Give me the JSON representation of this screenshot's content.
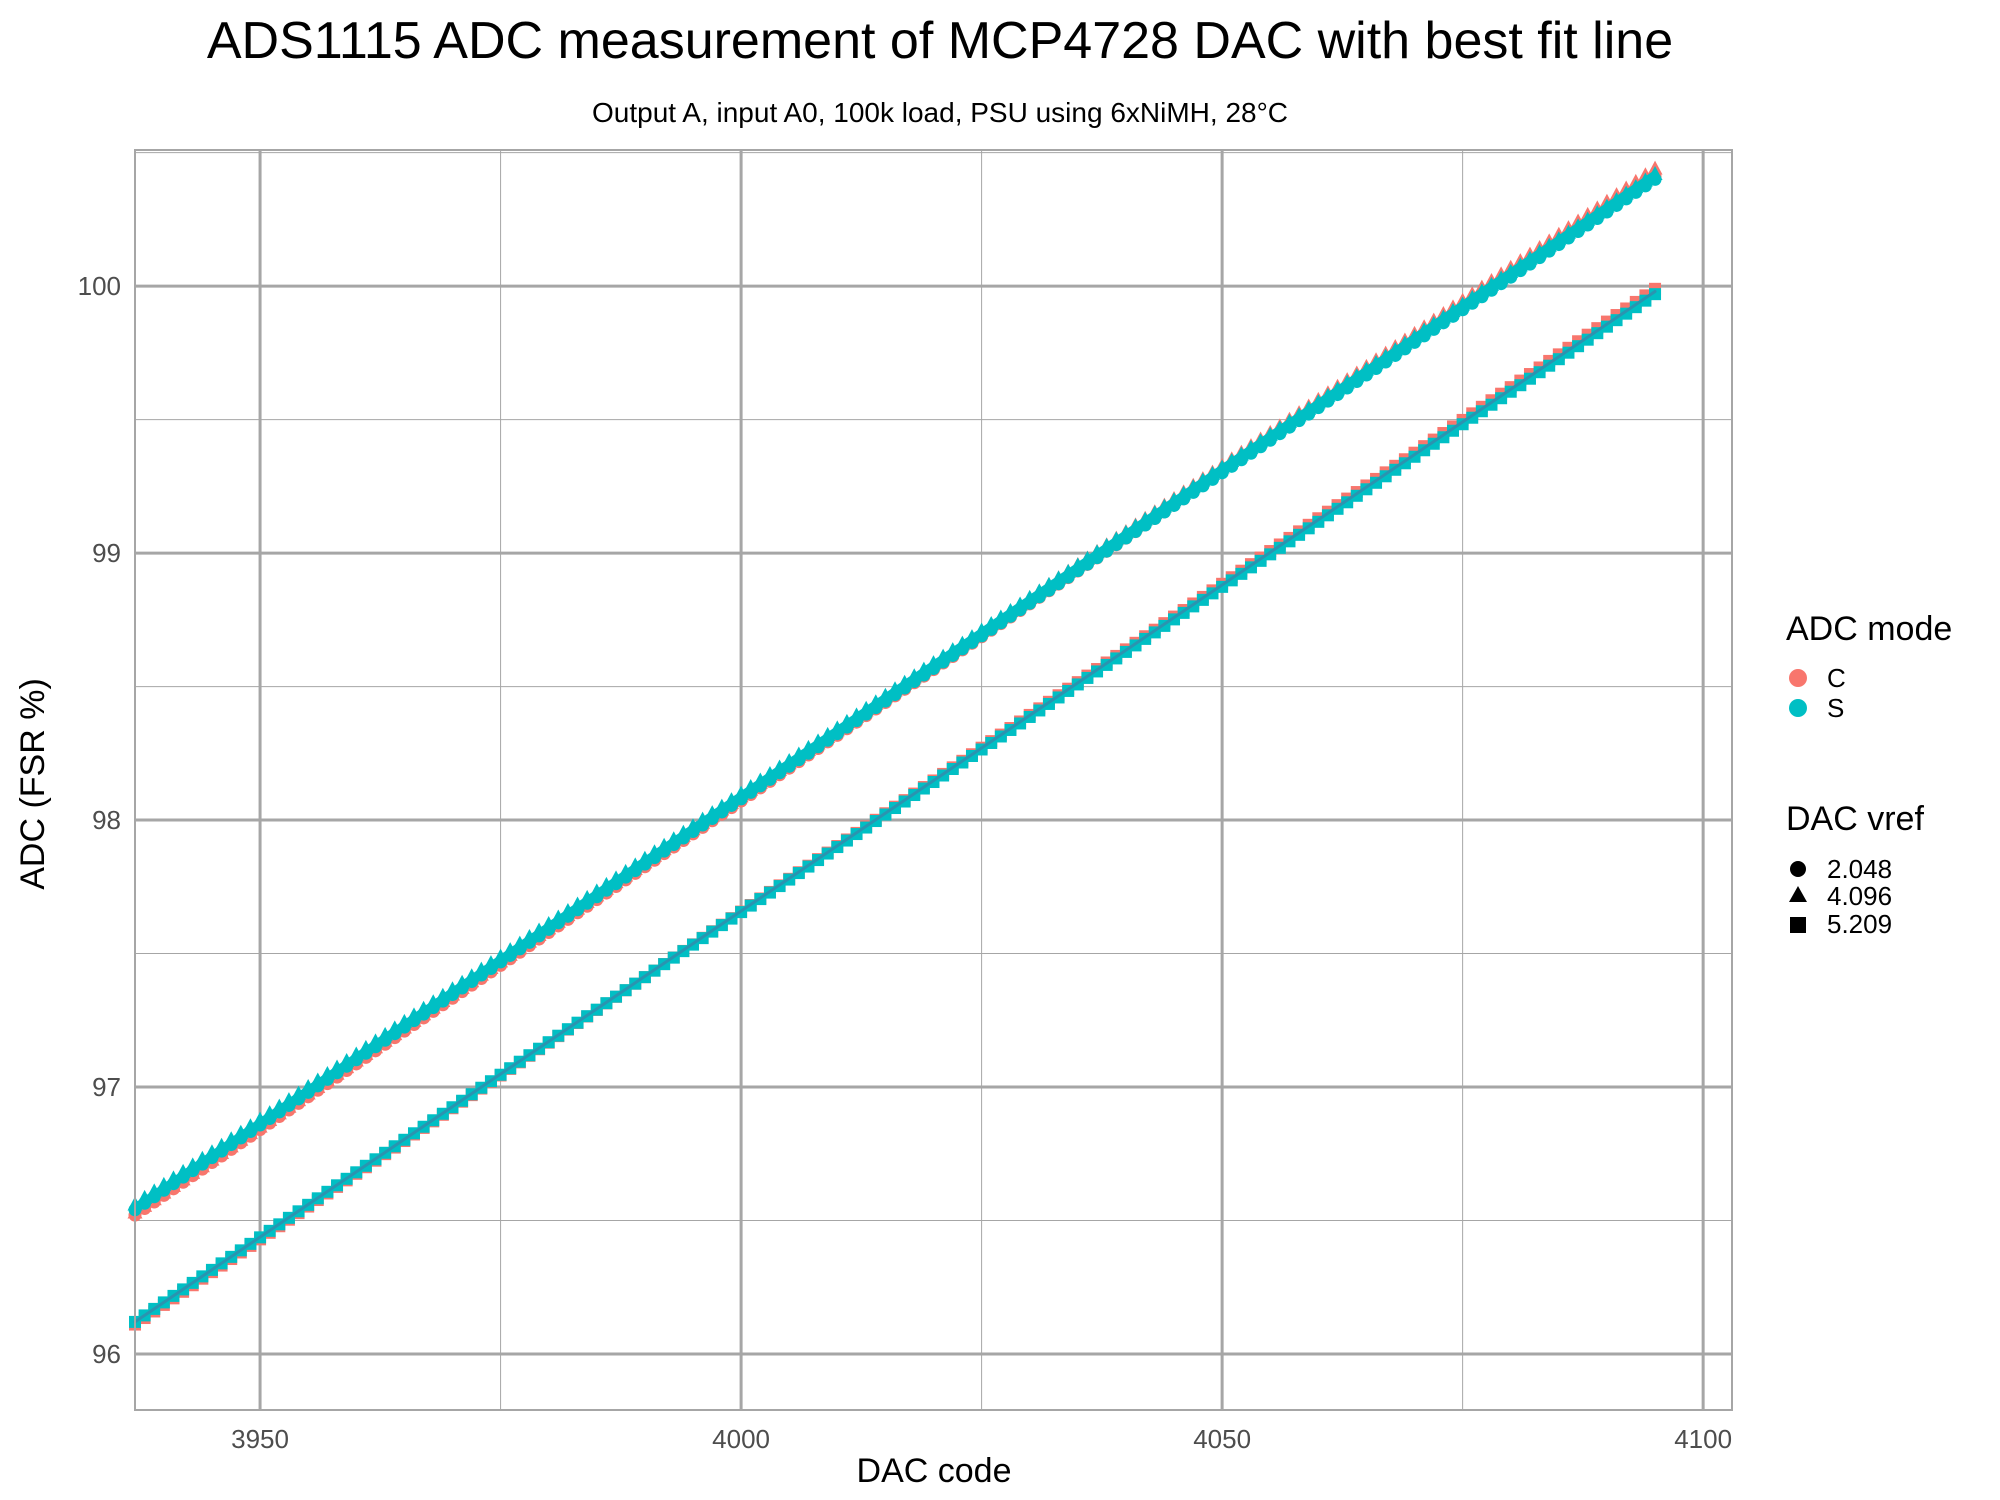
{
  "chart_data": {
    "type": "scatter",
    "title": "ADS1115 ADC measurement of MCP4728 DAC with best fit line",
    "subtitle": "Output A, input A0, 100k load, PSU using 6xNiMH, 28°C",
    "xlabel": "DAC code",
    "ylabel": "ADC (FSR %)",
    "xlim": [
      3937,
      4103
    ],
    "ylim": [
      95.79,
      100.51
    ],
    "x_ticks": [
      3950,
      4000,
      4050,
      4100
    ],
    "x_tick_labels": [
      "3950",
      "4000",
      "4050",
      "4100"
    ],
    "y_ticks": [
      96,
      97,
      98,
      99,
      100
    ],
    "y_tick_labels": [
      "96",
      "97",
      "98",
      "99",
      "100"
    ],
    "grid": true,
    "legend_position": "right",
    "x_range": [
      3937,
      4095
    ],
    "series": [
      {
        "color_group": "C",
        "shape_group": "2.048",
        "x_start": 3937,
        "x_end": 4095,
        "y_start": 96.52,
        "y_end": 100.41
      },
      {
        "color_group": "C",
        "shape_group": "4.096",
        "x_start": 3937,
        "x_end": 4095,
        "y_start": 96.53,
        "y_end": 100.44
      },
      {
        "color_group": "C",
        "shape_group": "5.209",
        "x_start": 3937,
        "x_end": 4095,
        "y_start": 96.11,
        "y_end": 99.99
      },
      {
        "color_group": "S",
        "shape_group": "2.048",
        "x_start": 3937,
        "x_end": 4095,
        "y_start": 96.54,
        "y_end": 100.4
      },
      {
        "color_group": "S",
        "shape_group": "4.096",
        "x_start": 3937,
        "x_end": 4095,
        "y_start": 96.56,
        "y_end": 100.42
      },
      {
        "color_group": "S",
        "shape_group": "5.209",
        "x_start": 3937,
        "x_end": 4095,
        "y_start": 96.12,
        "y_end": 99.97
      }
    ],
    "fit_lines": [
      {
        "x_start": 3937,
        "x_end": 4095,
        "y_start": 96.55,
        "y_end": 100.42,
        "color": "#00BFC4",
        "weight": "thick"
      },
      {
        "x_start": 3937,
        "x_end": 4095,
        "y_start": 96.12,
        "y_end": 99.98,
        "color": "#2A94B0",
        "weight": "thin"
      }
    ],
    "legend": {
      "color": {
        "title": "ADC mode",
        "items": [
          {
            "label": "C",
            "color": "#F8766D"
          },
          {
            "label": "S",
            "color": "#00BFC4"
          }
        ]
      },
      "shape": {
        "title": "DAC vref",
        "items": [
          {
            "label": "2.048",
            "shape": "circle"
          },
          {
            "label": "4.096",
            "shape": "triangle"
          },
          {
            "label": "5.209",
            "shape": "square"
          }
        ]
      }
    },
    "colors": {
      "C": "#F8766D",
      "S": "#00BFC4",
      "grid": "#a6a6a6",
      "text": "#4d4d4d"
    }
  }
}
